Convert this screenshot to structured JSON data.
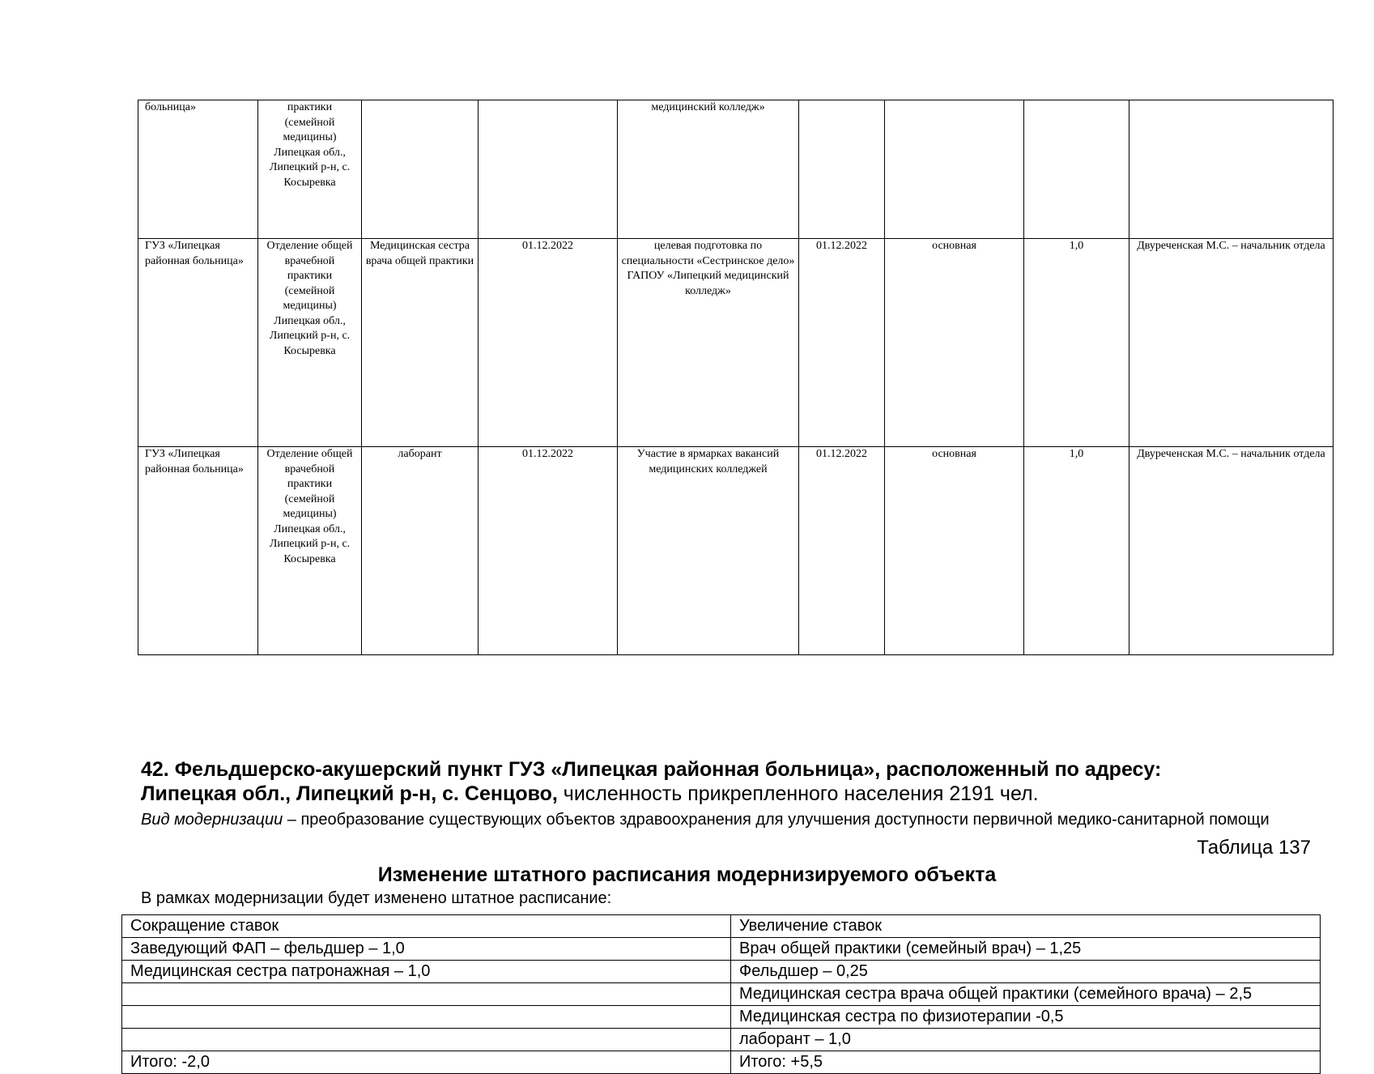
{
  "upper_table": {
    "rows": [
      {
        "org": "больница»",
        "dept": "практики (семейной медицины) Липецкая обл., Липецкий р-н, с. Косыревка",
        "position": "",
        "date": "",
        "measure": "медицинский колледж»",
        "date2": "",
        "type": "",
        "rate": "",
        "responsible": ""
      },
      {
        "org": "ГУЗ «Липецкая районная больница»",
        "dept": "Отделение общей врачебной практики (семейной медицины) Липецкая обл., Липецкий р-н, с. Косыревка",
        "position": "Медицинская сестра врача общей практики",
        "date": "01.12.2022",
        "measure": "целевая подготовка по специальности «Сестринское дело» ГАПОУ «Липецкий медицинский колледж»",
        "date2": "01.12.2022",
        "type": "основная",
        "rate": "1,0",
        "responsible": "Двуреченская М.С. – начальник отдела"
      },
      {
        "org": "ГУЗ «Липецкая районная больница»",
        "dept": "Отделение общей врачебной практики (семейной медицины) Липецкая обл., Липецкий р-н, с. Косыревка",
        "position": "лаборант",
        "date": "01.12.2022",
        "measure": "Участие в ярмарках вакансий медицинских колледжей",
        "date2": "01.12.2022",
        "type": "основная",
        "rate": "1,0",
        "responsible": "Двуреченская М.С. – начальник отдела"
      }
    ]
  },
  "section": {
    "heading_line1": "42. Фельдшерско-акушерский пункт ГУЗ «Липецкая районная больница», расположенный по адресу:",
    "heading_address": "Липецкая обл., Липецкий р-н, с. Сенцово,",
    "heading_population": " численность прикрепленного населения 2191 чел.",
    "modernization_label": "Вид модернизации",
    "modernization_text": " – преобразование существующих объектов здравоохранения для  улучшения доступности первичной медико-санитарной помощи",
    "table_number": "Таблица 137",
    "table_title": "Изменение штатного расписания модернизируемого объекта",
    "intro": "В рамках модернизации будет изменено штатное расписание:"
  },
  "staff_table": {
    "headers": [
      "Сокращение ставок",
      "Увеличение ставок"
    ],
    "rows": [
      [
        "Заведующий ФАП – фельдшер – 1,0",
        "Врач общей практики (семейный врач) – 1,25"
      ],
      [
        "Медицинская сестра патронажная – 1,0",
        "Фельдшер – 0,25"
      ],
      [
        "",
        "Медицинская сестра врача общей практики (семейного врача) – 2,5"
      ],
      [
        "",
        "Медицинская сестра по физиотерапии -0,5"
      ],
      [
        "",
        "лаборант – 1,0"
      ],
      [
        "Итого: -2,0",
        "Итого: +5,5"
      ]
    ]
  }
}
